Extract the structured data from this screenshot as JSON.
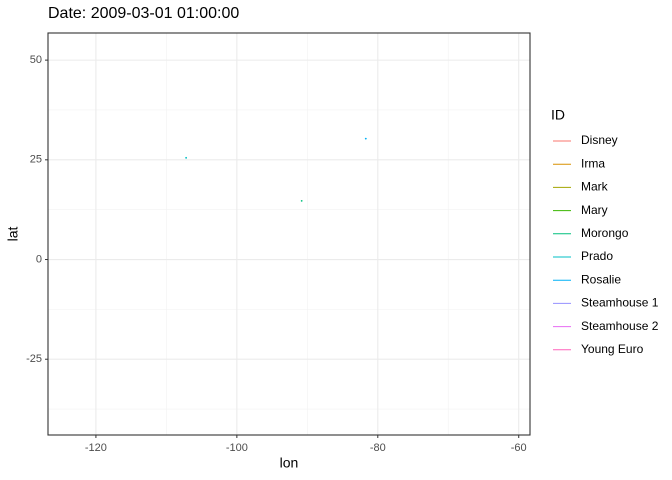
{
  "chart_data": {
    "type": "scatter",
    "title": "Date: 2009-03-01 01:00:00",
    "x_label": "lon",
    "y_label": "lat",
    "legend_title": "ID",
    "xlim": [
      -126.8,
      -58.4
    ],
    "xticks": [
      -120,
      -100,
      -80,
      -60
    ],
    "ylim": [
      -44.0,
      56.8
    ],
    "yticks": [
      50,
      25,
      0,
      -25
    ],
    "grid": true,
    "series": [
      {
        "name": "Disney",
        "color": "#F8766D",
        "x": [],
        "y": []
      },
      {
        "name": "Irma",
        "color": "#D89000",
        "x": [],
        "y": []
      },
      {
        "name": "Mark",
        "color": "#A3A500",
        "x": [],
        "y": []
      },
      {
        "name": "Mary",
        "color": "#39B600",
        "x": [],
        "y": []
      },
      {
        "name": "Morongo",
        "color": "#00BF7D",
        "x": [
          -90.8
        ],
        "y": [
          14.7
        ]
      },
      {
        "name": "Prado",
        "color": "#00BFC4",
        "x": [
          -107.2
        ],
        "y": [
          25.5
        ]
      },
      {
        "name": "Rosalie",
        "color": "#00B0F6",
        "x": [
          -81.7
        ],
        "y": [
          30.3
        ]
      },
      {
        "name": "Steamhouse 1",
        "color": "#9590FF",
        "x": [],
        "y": []
      },
      {
        "name": "Steamhouse 2",
        "color": "#E76BF3",
        "x": [],
        "y": []
      },
      {
        "name": "Young Euro",
        "color": "#FF62BC",
        "x": [],
        "y": []
      }
    ]
  }
}
